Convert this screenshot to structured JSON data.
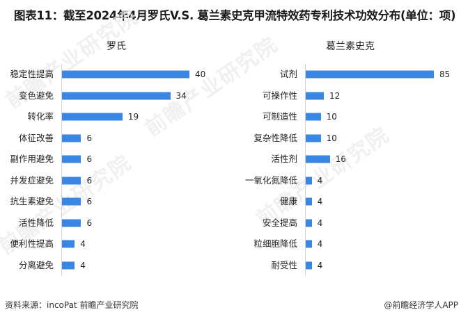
{
  "header": {
    "title": "图表11：截至2024年4月罗氏V.S. 葛兰素史克甲流特效药专利技术功效分布(单位：项)"
  },
  "footer": {
    "source": "资料来源：incoPat 前瞻产业研究院",
    "credit": "@前瞻经济学人APP"
  },
  "watermark": {
    "text": "前瞻产业研究院"
  },
  "colors": {
    "bar": "#3a86e4",
    "axis": "#d4d4d4"
  },
  "chart_data": [
    {
      "type": "bar",
      "orientation": "horizontal",
      "title": "罗氏",
      "categories": [
        "稳定性提高",
        "变色避免",
        "转化率",
        "体征改善",
        "副作用避免",
        "并发症避免",
        "抗生素避免",
        "活性降低",
        "便利性提高",
        "分离避免"
      ],
      "values": [
        40,
        34,
        19,
        6,
        6,
        6,
        6,
        6,
        4,
        4
      ],
      "xlabel": "",
      "ylabel": "",
      "grid": false,
      "data_labels": true,
      "unit": "项"
    },
    {
      "type": "bar",
      "orientation": "horizontal",
      "title": "葛兰素史克",
      "categories": [
        "试剂",
        "可操作性",
        "可制造性",
        "复杂性降低",
        "活性剂",
        "一氧化氮降低",
        "健康",
        "安全提高",
        "粒细胞降低",
        "耐受性"
      ],
      "values": [
        85,
        12,
        10,
        10,
        16,
        4,
        4,
        4,
        4,
        4
      ],
      "xlabel": "",
      "ylabel": "",
      "grid": false,
      "data_labels": true,
      "unit": "项"
    }
  ]
}
